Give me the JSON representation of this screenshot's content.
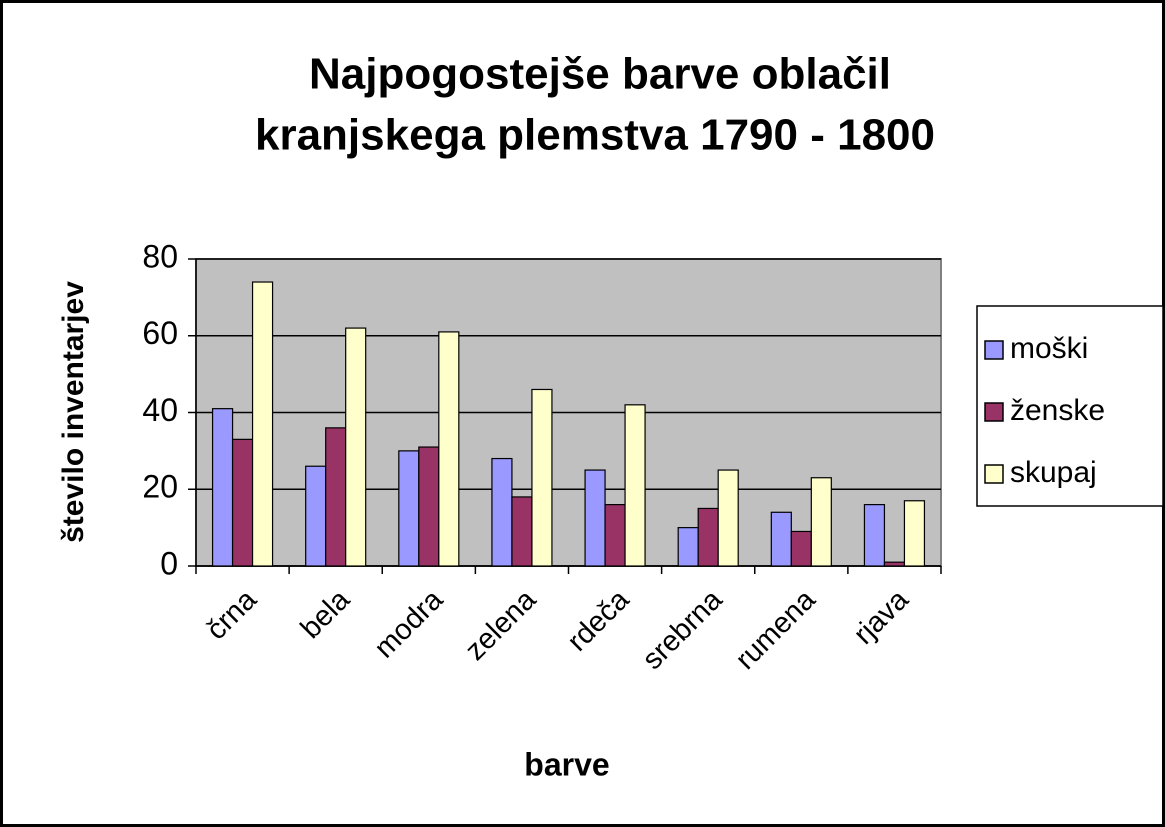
{
  "chart_data": {
    "type": "bar",
    "title": [
      "Najpogostejše barve oblačil",
      "kranjskega plemstva 1790 - 1800"
    ],
    "x_label": "barve",
    "y_label": "število inventarjev",
    "categories": [
      "črna",
      "bela",
      "modra",
      "zelena",
      "rdeča",
      "srebrna",
      "rumena",
      "rjava"
    ],
    "series": [
      {
        "name": "moški",
        "color": "#9999ff",
        "values": [
          41,
          26,
          30,
          28,
          25,
          10,
          14,
          16
        ]
      },
      {
        "name": "ženske",
        "color": "#993366",
        "values": [
          33,
          36,
          31,
          18,
          16,
          15,
          9,
          1
        ]
      },
      {
        "name": "skupaj",
        "color": "#ffffcc",
        "values": [
          74,
          62,
          61,
          46,
          42,
          25,
          23,
          17
        ]
      }
    ],
    "ylim": [
      0,
      80
    ],
    "yticks": [
      0,
      20,
      40,
      60,
      80
    ],
    "grid": true,
    "legend": "right"
  }
}
